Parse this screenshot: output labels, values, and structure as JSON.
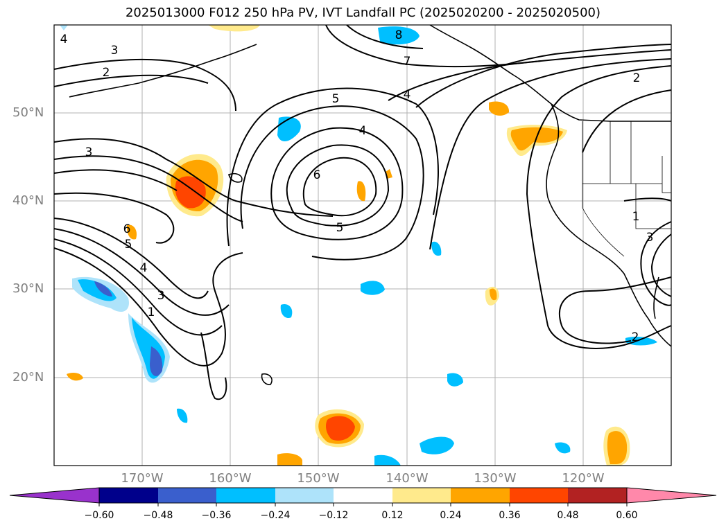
{
  "title": "2025013000 F012 250 hPa PV, IVT Landfall PC (2025020200 - 2025020500)",
  "lat_labels": [
    "50°N",
    "40°N",
    "30°N",
    "20°N"
  ],
  "lon_labels": [
    "170°W",
    "160°W",
    "150°W",
    "140°W",
    "130°W",
    "120°W"
  ],
  "contour_labels": [
    "8",
    "7",
    "4",
    "5",
    "2",
    "3",
    "2",
    "4",
    "6",
    "5",
    "3",
    "6",
    "5",
    "4",
    "3",
    "1",
    "1",
    "3",
    "2",
    "4"
  ],
  "colorbar": {
    "ticks": [
      "−0.60",
      "−0.48",
      "−0.36",
      "−0.24",
      "−0.12",
      "0.12",
      "0.24",
      "0.36",
      "0.48",
      "0.60"
    ],
    "colors": [
      "#9932cc",
      "#00008b",
      "#3a5fcd",
      "#00bfff",
      "#aee3fa",
      "#ffffff",
      "#ffea8c",
      "#ffa500",
      "#ff4500",
      "#b22222",
      "#ff88aa"
    ]
  }
}
